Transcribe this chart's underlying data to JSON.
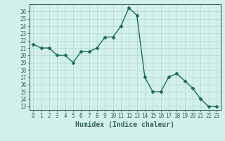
{
  "x": [
    0,
    1,
    2,
    3,
    4,
    5,
    6,
    7,
    8,
    9,
    10,
    11,
    12,
    13,
    14,
    15,
    16,
    17,
    18,
    19,
    20,
    21,
    22,
    23
  ],
  "y": [
    21.5,
    21.0,
    21.0,
    20.0,
    20.0,
    19.0,
    20.5,
    20.5,
    21.0,
    22.5,
    22.5,
    24.0,
    26.5,
    25.5,
    17.0,
    15.0,
    15.0,
    17.0,
    17.5,
    16.5,
    15.5,
    14.0,
    13.0,
    13.0
  ],
  "xlabel": "Humidex (Indice chaleur)",
  "line_color": "#1a6b5a",
  "marker_color": "#1a6b5a",
  "bg_color": "#d4f0eb",
  "grid_color": "#b0d8d0",
  "spine_color": "#336655",
  "ylim": [
    12.5,
    27
  ],
  "xlim": [
    -0.5,
    23.5
  ],
  "yticks": [
    13,
    14,
    15,
    16,
    17,
    18,
    19,
    20,
    21,
    22,
    23,
    24,
    25,
    26
  ],
  "xticks": [
    0,
    1,
    2,
    3,
    4,
    5,
    6,
    7,
    8,
    9,
    10,
    11,
    12,
    13,
    14,
    15,
    16,
    17,
    18,
    19,
    20,
    21,
    22,
    23
  ],
  "tick_fontsize": 5.5,
  "xlabel_fontsize": 7.0,
  "linewidth": 1.0,
  "markersize": 2.5
}
